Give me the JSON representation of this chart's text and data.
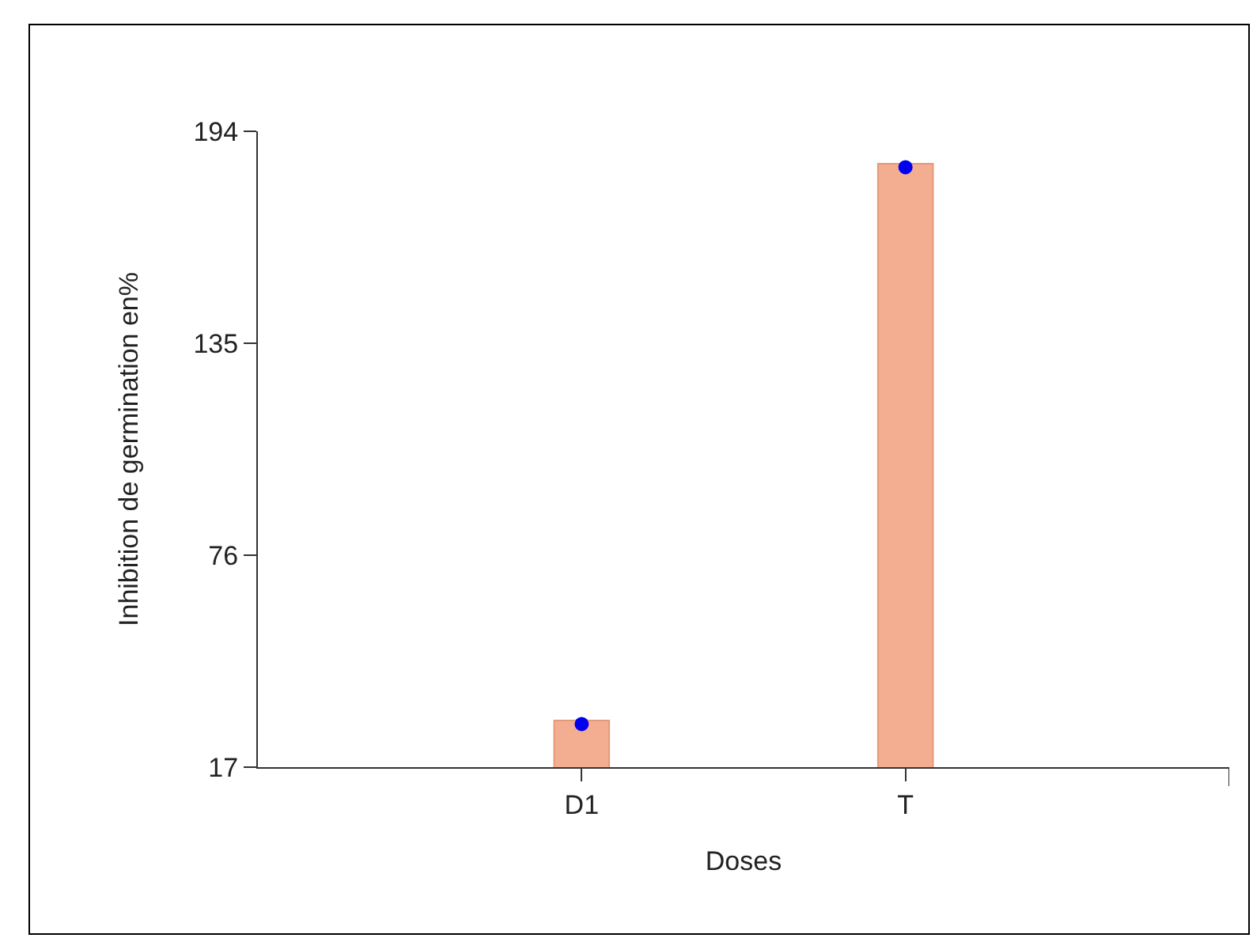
{
  "chart_data": {
    "type": "bar",
    "xlabel": "Doses",
    "ylabel": "Inhibition de germination en%",
    "categories": [
      "D1",
      "T"
    ],
    "series": [
      {
        "color": "#f3ae92",
        "values": [
          30,
          185
        ]
      },
      {
        "type": "scatter",
        "color": "#0000ee",
        "x": [
          "D1",
          "T"
        ],
        "values": [
          29,
          184
        ],
        "marker": "circle"
      }
    ],
    "ylim": [
      17,
      194
    ],
    "yticks": [
      17,
      76,
      135,
      194
    ],
    "grid": false
  }
}
